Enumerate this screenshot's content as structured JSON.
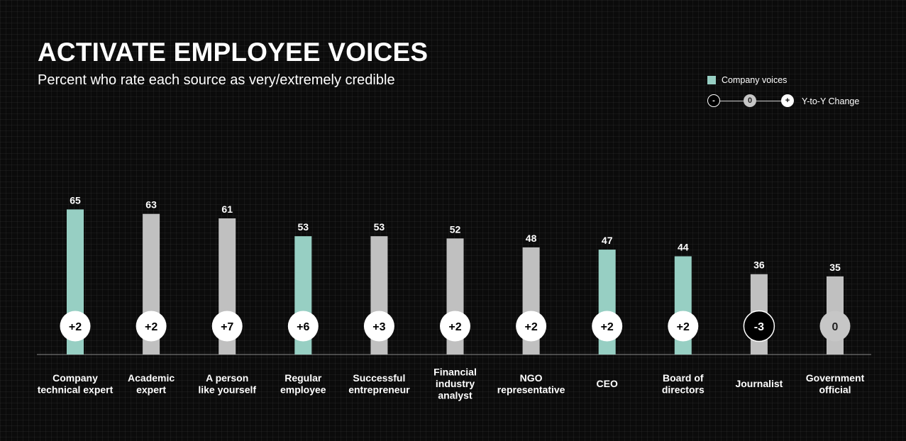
{
  "header": {
    "title": "ACTIVATE EMPLOYEE VOICES",
    "subtitle": "Percent who rate each source as very/extremely credible"
  },
  "legend": {
    "company_label": "Company voices",
    "change_label": "Y-to-Y Change",
    "neg_symbol": "-",
    "zero_symbol": "0",
    "pos_symbol": "+"
  },
  "colors": {
    "company": "#97cfc3",
    "other": "#c0c0c0",
    "background": "#0b0b0b",
    "positive_circle": "#ffffff",
    "zero_circle": "#c6c6c6",
    "negative_circle": "#000000"
  },
  "chart_data": {
    "type": "bar",
    "title": "ACTIVATE EMPLOYEE VOICES",
    "subtitle": "Percent who rate each source as very/extremely credible",
    "ylim": [
      0,
      100
    ],
    "grid": true,
    "legend_position": "top-right",
    "categories": [
      [
        "Company",
        "technical expert"
      ],
      [
        "Academic",
        "expert"
      ],
      [
        "A person",
        "like yourself"
      ],
      [
        "Regular",
        "employee"
      ],
      [
        "Successful",
        "entrepreneur"
      ],
      [
        "Financial",
        "industry",
        "analyst"
      ],
      [
        "NGO",
        "representative"
      ],
      [
        "CEO"
      ],
      [
        "Board of",
        "directors"
      ],
      [
        "Journalist"
      ],
      [
        "Government",
        "official"
      ]
    ],
    "values": [
      65,
      63,
      61,
      53,
      53,
      52,
      48,
      47,
      44,
      36,
      35
    ],
    "company_voice": [
      true,
      false,
      false,
      true,
      false,
      false,
      false,
      true,
      true,
      false,
      false
    ],
    "change": [
      2,
      2,
      7,
      6,
      3,
      2,
      2,
      2,
      2,
      -3,
      0
    ],
    "change_labels": [
      "+2",
      "+2",
      "+7",
      "+6",
      "+3",
      "+2",
      "+2",
      "+2",
      "+2",
      "-3",
      "0"
    ]
  }
}
